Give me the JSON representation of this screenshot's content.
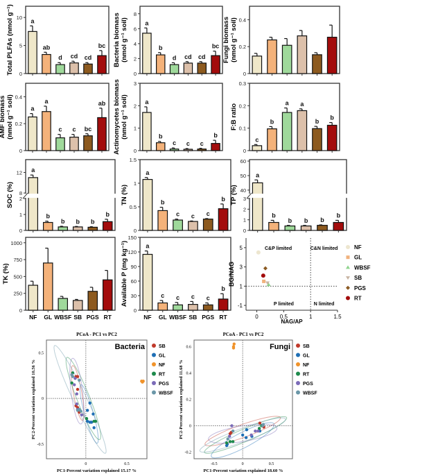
{
  "categories": [
    "NF",
    "GL",
    "WBSF",
    "SB",
    "PGS",
    "RT"
  ],
  "colors": {
    "NF": "#efe7c9",
    "GL": "#f4b27a",
    "WBSF": "#9fd99b",
    "SB": "#dcc0aa",
    "PGS": "#8d5a1f",
    "RT": "#a30c0c"
  },
  "chart_data": [
    {
      "type": "bar",
      "id": "total-plfas",
      "ylabel": [
        "Total PLFAs (nmol g⁻¹)"
      ],
      "ylim": [
        0,
        12
      ],
      "yticks": [
        0,
        5,
        10
      ],
      "values": [
        7.5,
        3.4,
        1.6,
        1.9,
        1.7,
        3.2
      ],
      "errors": [
        1.0,
        0.4,
        0.35,
        0.3,
        0.25,
        0.9
      ],
      "letters": [
        "a",
        "ab",
        "d",
        "cd",
        "cd",
        "bc"
      ]
    },
    {
      "type": "bar",
      "id": "bacteria-biomass",
      "ylabel": [
        "Bacteria biomass",
        "(nmol g⁻¹ soil)"
      ],
      "ylim": [
        0,
        9
      ],
      "yticks": [
        0,
        2,
        4,
        6,
        8
      ],
      "values": [
        5.4,
        2.5,
        1.2,
        1.4,
        1.4,
        2.4
      ],
      "errors": [
        0.7,
        0.3,
        0.25,
        0.2,
        0.2,
        0.6
      ],
      "letters": [
        "a",
        "b",
        "d",
        "cd",
        "cd",
        "bc"
      ]
    },
    {
      "type": "bar",
      "id": "fungi-biomass",
      "ylabel": [
        "Fungi biomass",
        "(nmol g⁻¹ soil)"
      ],
      "ylim": [
        0,
        0.5
      ],
      "yticks": [
        0.0,
        0.2,
        0.4
      ],
      "values": [
        0.13,
        0.25,
        0.21,
        0.28,
        0.14,
        0.27
      ],
      "errors": [
        0.02,
        0.02,
        0.05,
        0.04,
        0.015,
        0.09
      ],
      "letters": []
    },
    {
      "type": "bar",
      "id": "amf-biomass",
      "ylabel": [
        "AMF biomass",
        "(nmol g⁻¹ soil)"
      ],
      "ylim": [
        0,
        0.5
      ],
      "yticks": [
        0.0,
        0.2,
        0.4
      ],
      "values": [
        0.25,
        0.29,
        0.095,
        0.1,
        0.11,
        0.245
      ],
      "errors": [
        0.025,
        0.04,
        0.025,
        0.02,
        0.015,
        0.07
      ],
      "letters": [
        "a",
        "a",
        "c",
        "c",
        "bc",
        "ab"
      ]
    },
    {
      "type": "bar",
      "id": "actinomycetes-biomass",
      "ylabel": [
        "Actinomycetes biomass",
        "(nmol g⁻¹ soil)"
      ],
      "ylim": [
        0,
        3
      ],
      "yticks": [
        0,
        1,
        2,
        3
      ],
      "values": [
        1.7,
        0.35,
        0.07,
        0.06,
        0.07,
        0.32
      ],
      "errors": [
        0.25,
        0.06,
        0.05,
        0.03,
        0.03,
        0.14
      ],
      "letters": [
        "a",
        "b",
        "c",
        "c",
        "c",
        "b"
      ]
    },
    {
      "type": "bar",
      "id": "fb-ratio",
      "ylabel": [
        "F:B ratio"
      ],
      "ylim": [
        0,
        0.3
      ],
      "yticks": [
        0.0,
        0.1,
        0.2,
        0.3
      ],
      "values": [
        0.022,
        0.097,
        0.17,
        0.178,
        0.098,
        0.113
      ],
      "errors": [
        0.005,
        0.01,
        0.02,
        0.008,
        0.01,
        0.012
      ],
      "letters": [
        "c",
        "b",
        "a",
        "a",
        "b",
        "b"
      ]
    },
    {
      "type": "bar",
      "id": "soc",
      "ylabel": [
        "SOC (%)"
      ],
      "axis_break": {
        "lower": [
          0,
          2
        ],
        "upper": [
          8,
          14.5
        ]
      },
      "yticks": [
        0,
        1,
        2,
        8,
        12
      ],
      "values": [
        11,
        0.5,
        0.22,
        0.22,
        0.2,
        0.55
      ],
      "errors": [
        0.5,
        0.08,
        0.04,
        0.03,
        0.03,
        0.15
      ],
      "letters": [
        "a",
        "b",
        "b",
        "b",
        "b",
        "b"
      ]
    },
    {
      "type": "bar",
      "id": "tn",
      "ylabel": [
        "TN (%)"
      ],
      "ylim": [
        0,
        1.5
      ],
      "yticks": [
        0.0,
        0.5,
        1.0,
        1.5
      ],
      "values": [
        1.08,
        0.42,
        0.22,
        0.19,
        0.24,
        0.46
      ],
      "errors": [
        0.04,
        0.07,
        0.02,
        0.01,
        0.01,
        0.1
      ],
      "letters": [
        "a",
        "b",
        "c",
        "c",
        "c",
        "b"
      ]
    },
    {
      "type": "bar",
      "id": "tp",
      "ylabel": [
        "TP (%)"
      ],
      "axis_break": {
        "lower": [
          0,
          3
        ],
        "upper": [
          38,
          61
        ]
      },
      "yticks": [
        0,
        1,
        2,
        3,
        40,
        50,
        60
      ],
      "values": [
        45,
        0.75,
        0.42,
        0.42,
        0.48,
        0.75
      ],
      "errors": [
        2,
        0.2,
        0.05,
        0.05,
        0.04,
        0.2
      ],
      "letters": [
        "a",
        "b",
        "b",
        "b",
        "b",
        "b"
      ]
    },
    {
      "type": "bar",
      "id": "tk",
      "ylabel": [
        "TK (%)"
      ],
      "ylim": [
        0,
        1080
      ],
      "yticks": [
        0,
        250,
        500,
        750,
        1000
      ],
      "values": [
        370,
        700,
        175,
        145,
        280,
        450
      ],
      "errors": [
        60,
        220,
        30,
        15,
        60,
        140
      ],
      "letters": [],
      "show_xticklabels": true
    },
    {
      "type": "bar",
      "id": "available-p",
      "ylabel": [
        "Available P (mg kg⁻¹)"
      ],
      "ylim": [
        0,
        150
      ],
      "yticks": [
        0,
        30,
        60,
        90,
        120,
        150
      ],
      "values": [
        115,
        15,
        11,
        12,
        11,
        23
      ],
      "errors": [
        7,
        5,
        5,
        6,
        4,
        11
      ],
      "letters": [
        "a",
        "c",
        "c",
        "c",
        "c",
        "b"
      ],
      "show_xticklabels": true
    },
    {
      "type": "scatter",
      "id": "enzyme-stoichiometry",
      "xlabel": "NAG/AP",
      "ylabel": "BG/NAG",
      "xlim": [
        -0.2,
        1.5
      ],
      "ylim": [
        -1.5,
        6
      ],
      "xticks": [
        0.0,
        0.5,
        1.0,
        1.5
      ],
      "yticks": [
        -1,
        1,
        3,
        5
      ],
      "reference_lines": {
        "x": 1,
        "y": 1
      },
      "quadrant_labels": {
        "top_left": "C&P limited",
        "top_right": "C&N limited",
        "bottom_left": "P limited",
        "bottom_right": "N limited"
      },
      "points": [
        {
          "name": "NF",
          "x": 0.03,
          "y": 4.5,
          "marker": "circle"
        },
        {
          "name": "GL",
          "x": 0.13,
          "y": 1.5,
          "marker": "square"
        },
        {
          "name": "WBSF",
          "x": 0.22,
          "y": 1.15,
          "marker": "triangle"
        },
        {
          "name": "SB",
          "x": 0.2,
          "y": 1.35,
          "marker": "triangle-down"
        },
        {
          "name": "PGS",
          "x": 0.16,
          "y": 2.85,
          "marker": "diamond"
        },
        {
          "name": "RT",
          "x": 0.12,
          "y": 2.1,
          "marker": "circle"
        }
      ],
      "legend": "right",
      "colors": {
        "NF": "#ede6cf",
        "GL": "#f0b27d",
        "WBSF": "#8fd48e",
        "SB": "#c8b4a3",
        "PGS": "#8b5a22",
        "RT": "#a30c0c"
      }
    },
    {
      "type": "scatter",
      "id": "pcoa-bacteria",
      "title": "PCoA - PC1 vs PC2",
      "label": "Bacteria",
      "xlabel": "PC1-Percent variation explained 15.17 %",
      "ylabel": "PC2-Percent variation explained 10.56 %",
      "xlim": [
        -0.48,
        0.745
      ],
      "ylim": [
        -0.66,
        0.64
      ],
      "xticks": [
        0,
        0.5
      ],
      "yticks": [
        -0.5,
        0,
        0.5
      ],
      "reference_lines": {
        "x": 0,
        "y": 0
      },
      "legend": "right",
      "series": [
        {
          "name": "SB",
          "color": "#c0392b",
          "points": [
            [
              -0.12,
              0.24
            ],
            [
              -0.1,
              0.24
            ],
            [
              -0.1,
              0.1
            ],
            [
              -0.1,
              -0.1
            ],
            [
              -0.08,
              -0.15
            ],
            [
              -0.12,
              -0.08
            ]
          ],
          "ellipse": {
            "c": [
              -0.1,
              0.06
            ],
            "u": [
              0.06,
              -0.3
            ],
            "v": [
              0.05,
              0.01
            ]
          }
        },
        {
          "name": "GL",
          "color": "#1f6fb5",
          "points": [
            [
              0.02,
              -0.13
            ],
            [
              0.05,
              -0.05
            ],
            [
              0.02,
              -0.25
            ],
            [
              0.05,
              -0.26
            ],
            [
              0.09,
              -0.17
            ],
            [
              0.1,
              -0.32
            ],
            [
              0.07,
              -0.26
            ]
          ],
          "ellipse": {
            "c": [
              0.04,
              -0.17
            ],
            "u": [
              0.1,
              -0.32
            ],
            "v": [
              0.05,
              0.02
            ]
          }
        },
        {
          "name": "NF",
          "color": "#f0932b",
          "points": [
            [
              0.68,
              0.19
            ],
            [
              0.7,
              0.19
            ],
            [
              0.69,
              0.18
            ]
          ]
        },
        {
          "name": "RT",
          "color": "#1e8a4c",
          "points": [
            [
              -0.17,
              0.17
            ],
            [
              -0.16,
              0.28
            ],
            [
              0.01,
              -0.22
            ],
            [
              0.1,
              -0.25
            ],
            [
              0.12,
              -0.25
            ],
            [
              -0.1,
              -0.12
            ]
          ],
          "ellipse": {
            "c": [
              -0.03,
              0.0
            ],
            "u": [
              0.2,
              -0.45
            ],
            "v": [
              0.07,
              0.03
            ]
          }
        },
        {
          "name": "PGS",
          "color": "#7b6bb8",
          "points": [
            [
              -0.13,
              0.22
            ],
            [
              -0.14,
              0.15
            ],
            [
              -0.11,
              0.05
            ],
            [
              -0.11,
              -0.06
            ],
            [
              -0.05,
              -0.18
            ],
            [
              -0.1,
              -0.12
            ]
          ],
          "ellipse": {
            "c": [
              -0.11,
              0.08
            ],
            "u": [
              0.05,
              -0.36
            ],
            "v": [
              0.07,
              0.01
            ]
          }
        },
        {
          "name": "WBSF",
          "color": "#6b97a8",
          "points": [
            [
              -0.17,
              0.26
            ],
            [
              -0.16,
              0.24
            ],
            [
              -0.08,
              0.2
            ],
            [
              -0.06,
              -0.14
            ],
            [
              -0.08,
              -0.12
            ],
            [
              -0.1,
              -0.13
            ]
          ],
          "ellipse": {
            "c": [
              -0.07,
              -0.01
            ],
            "u": [
              0.31,
              -0.59
            ],
            "v": [
              0.07,
              0.035
            ]
          }
        }
      ]
    },
    {
      "type": "scatter",
      "id": "pcoa-fungi",
      "title": "PCoA - PC1 vs PC2",
      "label": "Fungi",
      "xlabel": "PC1-Percent variation explained 18.60 %",
      "ylabel": "PC2-Percent variation explained 11.68 %",
      "xlim": [
        -0.85,
        0.87
      ],
      "ylim": [
        -0.25,
        0.65
      ],
      "xticks": [
        -0.5,
        0,
        0.5
      ],
      "yticks": [
        -0.2,
        0,
        0.2,
        0.4,
        0.6
      ],
      "reference_lines": {
        "x": 0,
        "y": 0
      },
      "legend": "right",
      "series": [
        {
          "name": "SB",
          "color": "#c0392b",
          "points": [
            [
              -0.22,
              -0.06
            ],
            [
              -0.2,
              -0.05
            ],
            [
              0.3,
              0.02
            ],
            [
              0.37,
              -0.01
            ]
          ],
          "ellipse": {
            "c": [
              0.0,
              -0.04
            ],
            "u": [
              0.66,
              0.1
            ],
            "v": [
              0.01,
              -0.05
            ]
          }
        },
        {
          "name": "GL",
          "color": "#1f6fb5",
          "points": [
            [
              -0.28,
              -0.15
            ],
            [
              -0.27,
              -0.14
            ],
            [
              0,
              -0.07
            ],
            [
              0.07,
              -0.03
            ],
            [
              0.06,
              -0.09
            ],
            [
              0.16,
              -0.08
            ],
            [
              0.3,
              -0.04
            ]
          ],
          "ellipse": {
            "c": [
              0.0,
              -0.11
            ],
            "u": [
              0.55,
              0.12
            ],
            "v": [
              0.02,
              -0.06
            ]
          }
        },
        {
          "name": "NF",
          "color": "#f0932b",
          "points": [
            [
              -0.16,
              0.6
            ],
            [
              -0.15,
              0.62
            ],
            [
              -0.16,
              0.59
            ]
          ]
        },
        {
          "name": "RT",
          "color": "#1e8a4c",
          "points": [
            [
              -0.28,
              -0.13
            ],
            [
              -0.22,
              -0.12
            ],
            [
              -0.17,
              -0.12
            ],
            [
              0.29,
              -0.02
            ],
            [
              0.33,
              0
            ]
          ],
          "ellipse": {
            "c": [
              0.05,
              -0.07
            ],
            "u": [
              0.72,
              0.13
            ],
            "v": [
              0.01,
              -0.05
            ]
          }
        },
        {
          "name": "PGS",
          "color": "#7b6bb8",
          "points": [
            [
              -0.19,
              0
            ],
            [
              -0.23,
              -0.08
            ],
            [
              0.15,
              -0.07
            ],
            [
              0.22,
              -0.04
            ],
            [
              0.27,
              -0.04
            ]
          ],
          "ellipse": {
            "c": [
              0.0,
              -0.06
            ],
            "u": [
              0.6,
              0.04
            ],
            "v": [
              0.0,
              -0.06
            ]
          }
        },
        {
          "name": "WBSF",
          "color": "#6b97a8",
          "points": [
            [
              -0.17,
              -0.04
            ],
            [
              -0.26,
              -0.1
            ],
            [
              0.35,
              0
            ],
            [
              0.36,
              0.01
            ]
          ],
          "ellipse": {
            "c": [
              0.0,
              -0.07
            ],
            "u": [
              0.75,
              0.12
            ],
            "v": [
              0.02,
              -0.05
            ]
          }
        }
      ]
    }
  ]
}
